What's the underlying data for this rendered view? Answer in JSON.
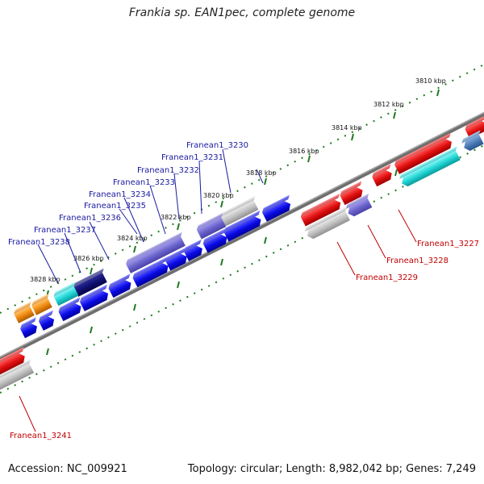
{
  "title": "Frankia sp. EAN1pec, complete genome",
  "footer": {
    "accession": "Accession: NC_009921",
    "topology": "Topology: circular; Length: 8,982,042 bp; Genes: 7,249"
  },
  "kbp_ticks": [
    "3810 kbp",
    "3812 kbp",
    "3814 kbp",
    "3816 kbp",
    "3818 kbp",
    "3820 kbp",
    "3822 kbp",
    "3824 kbp",
    "3826 kbp",
    "3828 kbp"
  ],
  "top_labels": [
    "Franean1_3230",
    "Franean1_3231",
    "Franean1_3232",
    "Franean1_3233",
    "Franean1_3234",
    "Franean1_3235",
    "Franean1_3236",
    "Franean1_3237",
    "Franean1_3238"
  ],
  "bottom_labels": [
    "Franean1_3227",
    "Franean1_3228",
    "Franean1_3229",
    "Franean1_3241"
  ],
  "colors": {
    "forward_gene": "#0a0ae6",
    "reverse_gene": "#e01010",
    "tick_green": "#1f7a1f",
    "top_label": "#1a1aa0",
    "bottom_label": "#c00000",
    "backbone": "#6e6e6e"
  }
}
